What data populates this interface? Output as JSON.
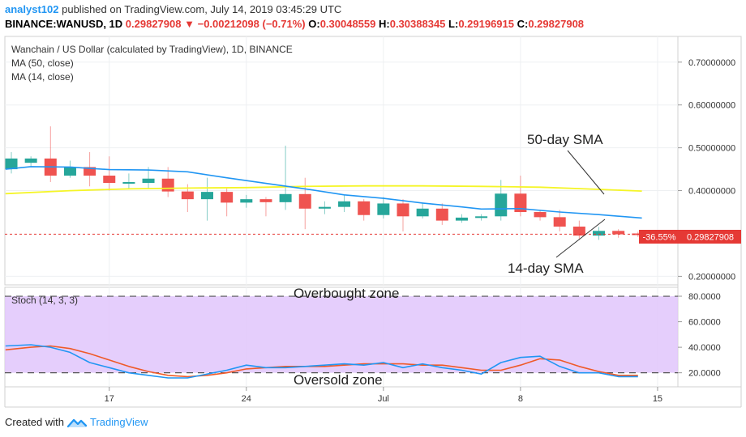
{
  "header": {
    "user": "analyst102",
    "published_text": " published on TradingView.com, July 14, 2019 03:45:29 UTC",
    "symbol": "BINANCE:WANUSD, 1D",
    "last": "0.29827908",
    "arrow": "▼",
    "change": "−0.00212098 (−0.71%)",
    "o_label": "O:",
    "o": "0.30048559",
    "h_label": "H:",
    "h": "0.30388345",
    "l_label": "L:",
    "l": "0.29196915",
    "c_label": "C:",
    "c": "0.29827908"
  },
  "legend": {
    "title": "Wanchain / US Dollar (calculated by TradingView), 1D, BINANCE",
    "ma50": "MA (50, close)",
    "ma14": "MA (14, close)",
    "stoch": "Stoch (14, 3, 3)"
  },
  "annotations": {
    "sma50": "50-day SMA",
    "sma14": "14-day SMA",
    "overbought": "Overbought zone",
    "oversold": "Oversold zone"
  },
  "price_badge": {
    "pct": "-36.55%",
    "value": "0.29827908"
  },
  "footer": {
    "created_with": "Created with",
    "brand": "TradingView"
  },
  "colors": {
    "up": "#26a69a",
    "down": "#ef5350",
    "ma50": "#f5f528",
    "ma14": "#2196f3",
    "stoch_k": "#2196f3",
    "stoch_d": "#ef5a28",
    "stoch_band": "#e1c6fb",
    "last_price": "#e53935"
  },
  "chart_data": [
    {
      "type": "candlestick",
      "title": "Wanchain / US Dollar (calculated by TradingView), 1D, BINANCE",
      "ylim": [
        0.18,
        0.76
      ],
      "yticks": [
        "0.70000000",
        "0.60000000",
        "0.50000000",
        "0.40000000",
        "0.20000000"
      ],
      "ytick_values": [
        0.7,
        0.6,
        0.5,
        0.4,
        0.2
      ],
      "xlim": [
        0,
        33
      ],
      "xticks": [
        {
          "label": "17",
          "x": 5
        },
        {
          "label": "24",
          "x": 12
        },
        {
          "label": "Jul",
          "x": 19
        },
        {
          "label": "8",
          "x": 26
        },
        {
          "label": "15",
          "x": 33
        }
      ],
      "candles": [
        {
          "x": 0,
          "o": 0.45,
          "c": 0.475,
          "h": 0.49,
          "l": 0.44
        },
        {
          "x": 1,
          "o": 0.465,
          "c": 0.475,
          "h": 0.48,
          "l": 0.455
        },
        {
          "x": 2,
          "o": 0.475,
          "c": 0.435,
          "h": 0.55,
          "l": 0.42
        },
        {
          "x": 3,
          "o": 0.435,
          "c": 0.455,
          "h": 0.47,
          "l": 0.43
        },
        {
          "x": 4,
          "o": 0.455,
          "c": 0.435,
          "h": 0.49,
          "l": 0.41
        },
        {
          "x": 5,
          "o": 0.435,
          "c": 0.418,
          "h": 0.48,
          "l": 0.4
        },
        {
          "x": 6,
          "o": 0.418,
          "c": 0.42,
          "h": 0.44,
          "l": 0.405
        },
        {
          "x": 7,
          "o": 0.418,
          "c": 0.428,
          "h": 0.455,
          "l": 0.405
        },
        {
          "x": 8,
          "o": 0.428,
          "c": 0.398,
          "h": 0.455,
          "l": 0.385
        },
        {
          "x": 9,
          "o": 0.398,
          "c": 0.38,
          "h": 0.415,
          "l": 0.35
        },
        {
          "x": 10,
          "o": 0.38,
          "c": 0.397,
          "h": 0.43,
          "l": 0.33
        },
        {
          "x": 11,
          "o": 0.397,
          "c": 0.372,
          "h": 0.405,
          "l": 0.34
        },
        {
          "x": 12,
          "o": 0.372,
          "c": 0.38,
          "h": 0.39,
          "l": 0.36
        },
        {
          "x": 13,
          "o": 0.38,
          "c": 0.373,
          "h": 0.385,
          "l": 0.34
        },
        {
          "x": 14,
          "o": 0.373,
          "c": 0.392,
          "h": 0.505,
          "l": 0.355
        },
        {
          "x": 15,
          "o": 0.392,
          "c": 0.358,
          "h": 0.43,
          "l": 0.31
        },
        {
          "x": 16,
          "o": 0.358,
          "c": 0.362,
          "h": 0.375,
          "l": 0.345
        },
        {
          "x": 17,
          "o": 0.362,
          "c": 0.375,
          "h": 0.39,
          "l": 0.35
        },
        {
          "x": 18,
          "o": 0.375,
          "c": 0.343,
          "h": 0.38,
          "l": 0.33
        },
        {
          "x": 19,
          "o": 0.343,
          "c": 0.37,
          "h": 0.385,
          "l": 0.335
        },
        {
          "x": 20,
          "o": 0.37,
          "c": 0.34,
          "h": 0.38,
          "l": 0.305
        },
        {
          "x": 21,
          "o": 0.34,
          "c": 0.358,
          "h": 0.37,
          "l": 0.335
        },
        {
          "x": 22,
          "o": 0.358,
          "c": 0.33,
          "h": 0.37,
          "l": 0.32
        },
        {
          "x": 23,
          "o": 0.33,
          "c": 0.337,
          "h": 0.345,
          "l": 0.325
        },
        {
          "x": 24,
          "o": 0.337,
          "c": 0.34,
          "h": 0.345,
          "l": 0.33
        },
        {
          "x": 25,
          "o": 0.34,
          "c": 0.393,
          "h": 0.425,
          "l": 0.33
        },
        {
          "x": 26,
          "o": 0.393,
          "c": 0.35,
          "h": 0.435,
          "l": 0.34
        },
        {
          "x": 27,
          "o": 0.35,
          "c": 0.338,
          "h": 0.355,
          "l": 0.33
        },
        {
          "x": 28,
          "o": 0.338,
          "c": 0.316,
          "h": 0.355,
          "l": 0.305
        },
        {
          "x": 29,
          "o": 0.316,
          "c": 0.295,
          "h": 0.33,
          "l": 0.285
        },
        {
          "x": 30,
          "o": 0.295,
          "c": 0.306,
          "h": 0.315,
          "l": 0.285
        },
        {
          "x": 31,
          "o": 0.306,
          "c": 0.298,
          "h": 0.31,
          "l": 0.29
        },
        {
          "x": 32,
          "o": 0.3,
          "c": 0.298,
          "h": 0.304,
          "l": 0.292
        }
      ],
      "series": [
        {
          "name": "MA (50, close)",
          "x": [
            -0.3,
            3,
            6,
            9,
            12,
            15,
            18,
            21,
            24,
            27,
            30,
            32.2
          ],
          "values": [
            0.393,
            0.4,
            0.404,
            0.406,
            0.407,
            0.41,
            0.411,
            0.411,
            0.41,
            0.408,
            0.403,
            0.399
          ]
        },
        {
          "name": "MA (14, close)",
          "x": [
            -0.3,
            1,
            3,
            5,
            7,
            9,
            11,
            13,
            15,
            17,
            19,
            21,
            23,
            24,
            26,
            28,
            30,
            32.2
          ],
          "values": [
            0.45,
            0.456,
            0.455,
            0.449,
            0.448,
            0.444,
            0.43,
            0.417,
            0.404,
            0.39,
            0.382,
            0.371,
            0.362,
            0.357,
            0.358,
            0.35,
            0.344,
            0.336
          ]
        }
      ],
      "last_price": 0.29827908
    },
    {
      "type": "line",
      "title": "Stoch (14, 3, 3)",
      "ylim": [
        9,
        87
      ],
      "yticks": [
        "80.0000",
        "60.0000",
        "40.0000",
        "20.0000"
      ],
      "ytick_values": [
        80,
        60,
        40,
        20
      ],
      "band": [
        20,
        80
      ],
      "series": [
        {
          "name": "%K",
          "x": [
            -0.3,
            1,
            2,
            3,
            4,
            5,
            6,
            7,
            8,
            9,
            10,
            11,
            12,
            13,
            14,
            15,
            16,
            17,
            18,
            19,
            20,
            21,
            22,
            23,
            24,
            25,
            26,
            27,
            28,
            29,
            30,
            31,
            32
          ],
          "values": [
            41,
            42,
            40,
            36,
            28,
            24,
            20,
            18,
            16,
            16,
            19,
            22,
            26,
            24,
            24,
            25,
            26,
            27,
            26,
            28,
            24,
            27,
            24,
            22,
            19,
            28,
            32,
            33,
            25,
            20,
            20,
            17,
            17
          ]
        },
        {
          "name": "%D",
          "x": [
            -0.3,
            1,
            2,
            3,
            4,
            5,
            6,
            7,
            8,
            9,
            10,
            11,
            12,
            13,
            14,
            15,
            16,
            17,
            18,
            19,
            20,
            21,
            22,
            23,
            24,
            25,
            26,
            27,
            28,
            29,
            30,
            31,
            32
          ],
          "values": [
            38,
            40,
            41,
            39,
            35,
            30,
            25,
            21,
            18,
            17,
            18,
            20,
            23,
            24,
            25,
            25,
            25,
            26,
            27,
            27,
            27,
            26,
            26,
            24,
            22,
            22,
            26,
            31,
            30,
            25,
            21,
            18,
            18
          ]
        }
      ]
    }
  ]
}
